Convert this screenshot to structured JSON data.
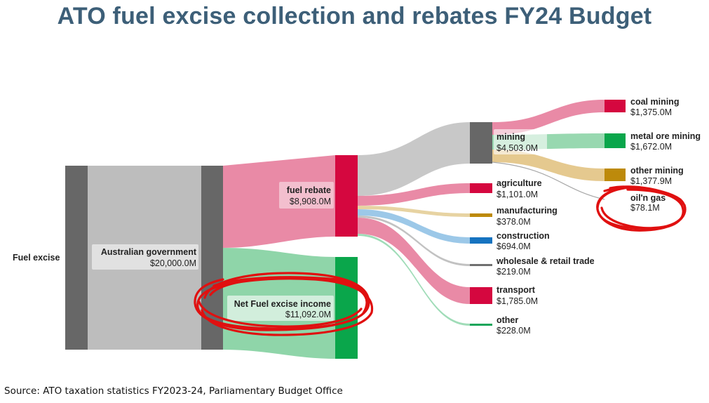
{
  "title": "ATO fuel excise collection and rebates FY24 Budget",
  "source": "Source: ATO taxation statistics FY2023-24, Parliamentary Budget Office",
  "nodes": {
    "fuel_excise": {
      "name": "Fuel excise"
    },
    "australian_government": {
      "name": "Australian government",
      "value": "$20,000.0M"
    },
    "fuel_rebate": {
      "name": "fuel rebate",
      "value": "$8,908.0M"
    },
    "net_income": {
      "name": "Net Fuel excise income",
      "value": "$11,092.0M"
    },
    "mining": {
      "name": "mining",
      "value": "$4,503.0M"
    },
    "agriculture": {
      "name": "agriculture",
      "value": "$1,101.0M"
    },
    "manufacturing": {
      "name": "manufacturing",
      "value": "$378.0M"
    },
    "construction": {
      "name": "construction",
      "value": "$694.0M"
    },
    "wholesale": {
      "name": "wholesale & retail trade",
      "value": "$219.0M"
    },
    "transport": {
      "name": "transport",
      "value": "$1,785.0M"
    },
    "other": {
      "name": "other",
      "value": "$228.0M"
    },
    "coal_mining": {
      "name": "coal mining",
      "value": "$1,375.0M"
    },
    "metal_ore_mining": {
      "name": "metal ore mining",
      "value": "$1,672.0M"
    },
    "other_mining": {
      "name": "other mining",
      "value": "$1,377.9M"
    },
    "oil_gas": {
      "name": "oil'n gas",
      "value": "$78.1M"
    }
  },
  "colors": {
    "node_dark": "#676767",
    "rebate": "#d5073f",
    "rebate_flow": "#e98aa6",
    "net": "#0aa64b",
    "net_flow": "#8fd5a9",
    "grey_flow": "#bdbdbd",
    "mining_flow": "#c8c8c8",
    "metal": "#0aa64b",
    "metal_flow": "#98d8b0",
    "other_mining": "#bd8a0b",
    "other_mining_flow": "#e5c98f",
    "manufacturing": "#bd8a0b",
    "manufacturing_flow": "#e7d3a2",
    "construction": "#1673c0",
    "construction_flow": "#9cc8e8",
    "wholesale": "#707070",
    "wholesale_flow": "#c2c2c2",
    "other": "#17a55a",
    "other_flow": "#a0dcb8",
    "annotation": "#e01010"
  }
}
